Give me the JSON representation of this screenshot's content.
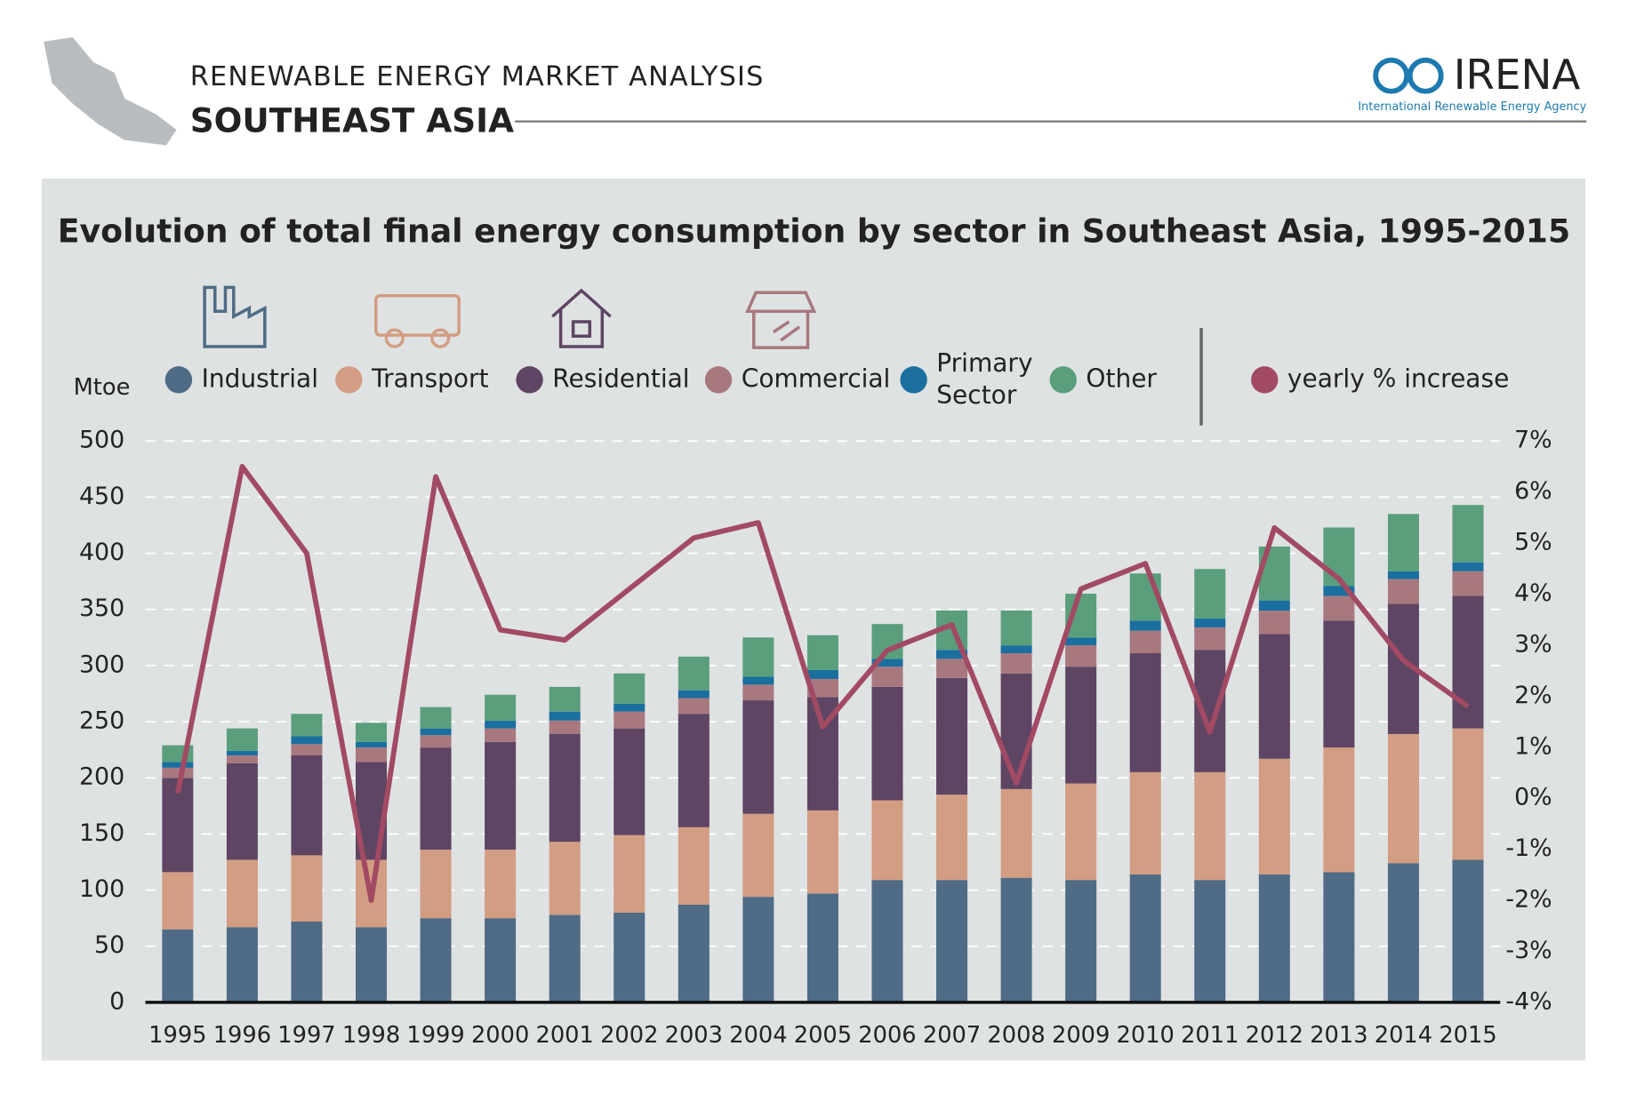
{
  "header": {
    "kicker": "RENEWABLE ENERGY MARKET ANALYSIS",
    "title": "SOUTHEAST ASIA",
    "logo": "IRENA",
    "logo_subtitle": "International Renewable Energy Agency"
  },
  "chart_data": {
    "type": "bar",
    "stacked": true,
    "title": "Evolution of total final energy consumption by sector in Southeast Asia, 1995-2015",
    "y_label": "Mtoe",
    "categories": [
      "1995",
      "1996",
      "1997",
      "1998",
      "1999",
      "2000",
      "2001",
      "2002",
      "2003",
      "2004",
      "2005",
      "2006",
      "2007",
      "2008",
      "2009",
      "2010",
      "2011",
      "2012",
      "2013",
      "2014",
      "2015"
    ],
    "series": [
      {
        "name": "Industrial",
        "color": "#4f6b85",
        "values": [
          65,
          67,
          72,
          67,
          75,
          75,
          78,
          80,
          87,
          94,
          97,
          109,
          109,
          111,
          109,
          114,
          109,
          114,
          116,
          124,
          127
        ]
      },
      {
        "name": "Transport",
        "color": "#d29d82",
        "values": [
          51,
          60,
          59,
          60,
          61,
          61,
          65,
          69,
          69,
          74,
          74,
          71,
          76,
          79,
          86,
          91,
          96,
          103,
          111,
          115,
          117
        ]
      },
      {
        "name": "Residential",
        "color": "#5e4563",
        "values": [
          84,
          86,
          89,
          87,
          91,
          96,
          96,
          95,
          101,
          101,
          101,
          101,
          104,
          103,
          104,
          106,
          109,
          111,
          113,
          116,
          118
        ]
      },
      {
        "name": "Commercial",
        "color": "#a8787f",
        "values": [
          9,
          7,
          10,
          13,
          11,
          12,
          12,
          15,
          14,
          14,
          16,
          18,
          17,
          18,
          19,
          20,
          20,
          21,
          22,
          22,
          22
        ]
      },
      {
        "name": "Primary Sector",
        "color": "#1a6f9e",
        "values": [
          5,
          4,
          7,
          5,
          6,
          7,
          8,
          7,
          7,
          7,
          8,
          7,
          8,
          7,
          7,
          9,
          8,
          9,
          9,
          7,
          8
        ]
      },
      {
        "name": "Other",
        "color": "#5a9e7c",
        "values": [
          15,
          20,
          20,
          17,
          19,
          23,
          22,
          27,
          30,
          35,
          31,
          31,
          35,
          31,
          39,
          42,
          44,
          48,
          52,
          51,
          51
        ]
      },
      {
        "name": "yearly % increase",
        "color": "#a24a63",
        "type": "line",
        "axis": "y2",
        "values": [
          0.1,
          6.5,
          4.8,
          -2.0,
          6.3,
          3.3,
          3.1,
          4.1,
          5.1,
          5.4,
          1.4,
          2.9,
          3.4,
          0.3,
          4.1,
          4.6,
          1.3,
          5.3,
          4.3,
          2.7,
          1.8
        ]
      }
    ],
    "ylim": [
      0,
      500
    ],
    "yticks": [
      0,
      50,
      100,
      150,
      200,
      250,
      300,
      350,
      400,
      450,
      500
    ],
    "y2lim": [
      -4,
      7
    ],
    "y2ticks": [
      {
        "value": -4,
        "label": "-4%"
      },
      {
        "value": -3,
        "label": "-3%"
      },
      {
        "value": -2,
        "label": "-2%"
      },
      {
        "value": -1,
        "label": "-1%"
      },
      {
        "value": 0,
        "label": "0%"
      },
      {
        "value": 1,
        "label": "1%"
      },
      {
        "value": 2,
        "label": "2%"
      },
      {
        "value": 3,
        "label": "3%"
      },
      {
        "value": 4,
        "label": "4%"
      },
      {
        "value": 5,
        "label": "5%"
      },
      {
        "value": 6,
        "label": "6%"
      },
      {
        "value": 7,
        "label": "7%"
      }
    ],
    "grid": true
  }
}
